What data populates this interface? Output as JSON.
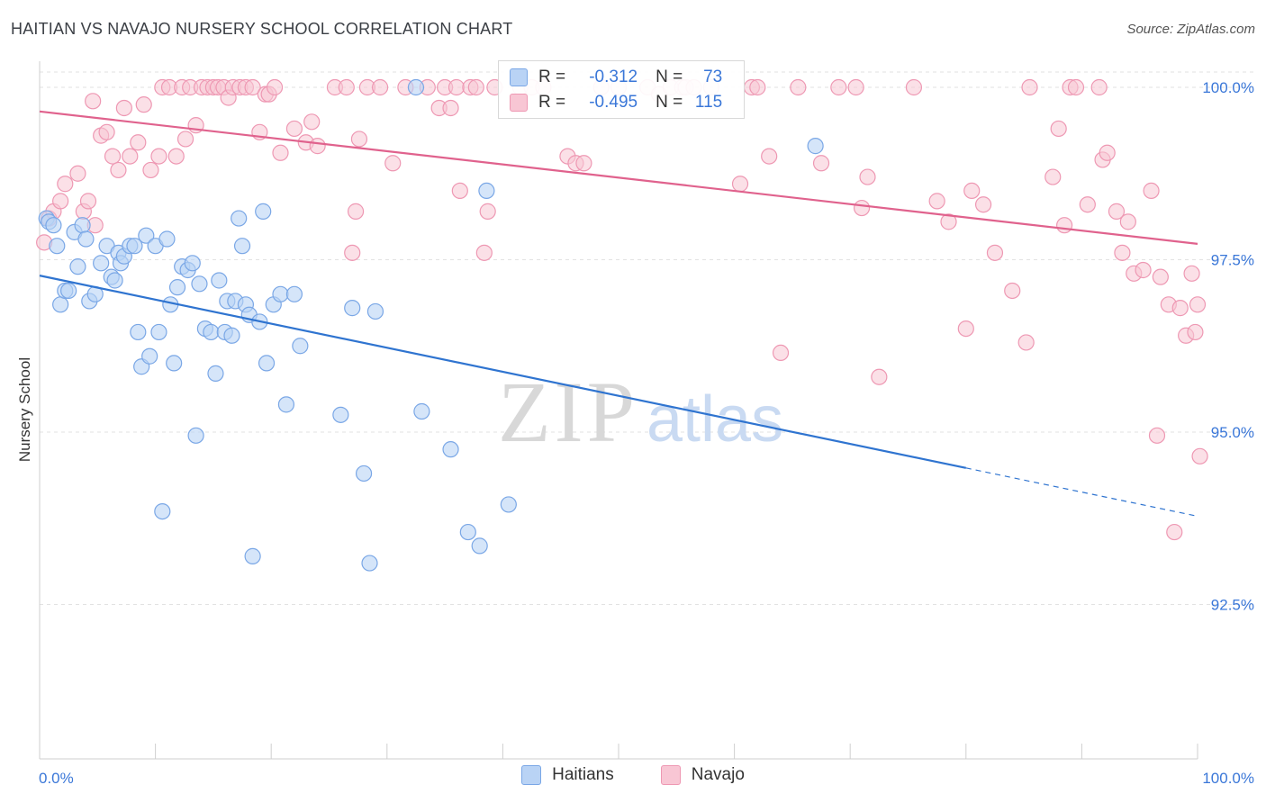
{
  "title": "HAITIAN VS NAVAJO NURSERY SCHOOL CORRELATION CHART",
  "source": "Source: ZipAtlas.com",
  "watermark": {
    "zip": "ZIP",
    "atlas": "atlas"
  },
  "legend": {
    "series1": {
      "r_label": "R =",
      "r_value": "-0.312",
      "n_label": "N =",
      "n_value": "73"
    },
    "series2": {
      "r_label": "R =",
      "r_value": "-0.495",
      "n_label": "N =",
      "n_value": "115"
    }
  },
  "bottom_legend": {
    "haitians": "Haitians",
    "navajo": "Navajo"
  },
  "colors": {
    "haitians_fill": "#b9d3f5",
    "haitians_stroke": "#7aa7e6",
    "haitians_line": "#2f74d0",
    "navajo_fill": "#f8c6d4",
    "navajo_stroke": "#ee98b3",
    "navajo_line": "#e0628d",
    "tick_label": "#3a77d8",
    "grid": "#e2e2e2"
  },
  "chart_data": {
    "type": "scatter",
    "xlabel": "",
    "ylabel": "Nursery School",
    "xlim": [
      0,
      100
    ],
    "ylim": [
      90.0,
      100.25
    ],
    "x_tick_labels": [
      {
        "x": 0,
        "label": "0.0%"
      },
      {
        "x": 100,
        "label": "100.0%"
      }
    ],
    "y_tick_labels": [
      {
        "y": 100.0,
        "label": "100.0%"
      },
      {
        "y": 97.5,
        "label": "97.5%"
      },
      {
        "y": 95.0,
        "label": "95.0%"
      },
      {
        "y": 92.5,
        "label": "92.5%"
      }
    ],
    "grid": true,
    "series": [
      {
        "name": "Haitians",
        "color": "#7aa7e6",
        "r": -0.312,
        "n": 73,
        "trend": {
          "x0": 0,
          "y0": 97.27,
          "x1": 80,
          "y1": 94.48,
          "dash_to_x": 100,
          "dash_to_y": 93.78
        },
        "points": [
          [
            0.6,
            98.1
          ],
          [
            0.8,
            98.05
          ],
          [
            1.2,
            98.0
          ],
          [
            1.5,
            97.7
          ],
          [
            1.8,
            96.85
          ],
          [
            2.2,
            97.05
          ],
          [
            2.5,
            97.05
          ],
          [
            3.0,
            97.9
          ],
          [
            3.3,
            97.4
          ],
          [
            3.7,
            98.0
          ],
          [
            4.0,
            97.8
          ],
          [
            4.3,
            96.9
          ],
          [
            4.8,
            97.0
          ],
          [
            5.3,
            97.45
          ],
          [
            5.8,
            97.7
          ],
          [
            6.2,
            97.25
          ],
          [
            6.5,
            97.2
          ],
          [
            6.8,
            97.6
          ],
          [
            7.0,
            97.45
          ],
          [
            7.3,
            97.55
          ],
          [
            7.8,
            97.7
          ],
          [
            8.2,
            97.7
          ],
          [
            8.5,
            96.45
          ],
          [
            8.8,
            95.95
          ],
          [
            9.2,
            97.85
          ],
          [
            9.5,
            96.1
          ],
          [
            10.0,
            97.7
          ],
          [
            10.3,
            96.45
          ],
          [
            10.6,
            93.85
          ],
          [
            11.0,
            97.8
          ],
          [
            11.3,
            96.85
          ],
          [
            11.6,
            96.0
          ],
          [
            11.9,
            97.1
          ],
          [
            12.3,
            97.4
          ],
          [
            12.8,
            97.35
          ],
          [
            13.2,
            97.45
          ],
          [
            13.5,
            94.95
          ],
          [
            13.8,
            97.15
          ],
          [
            14.3,
            96.5
          ],
          [
            14.8,
            96.45
          ],
          [
            15.2,
            95.85
          ],
          [
            15.5,
            97.2
          ],
          [
            16.0,
            96.45
          ],
          [
            16.2,
            96.9
          ],
          [
            16.6,
            96.4
          ],
          [
            16.9,
            96.9
          ],
          [
            17.2,
            98.1
          ],
          [
            17.5,
            97.7
          ],
          [
            17.8,
            96.85
          ],
          [
            18.1,
            96.7
          ],
          [
            18.4,
            93.2
          ],
          [
            19.0,
            96.6
          ],
          [
            19.3,
            98.2
          ],
          [
            19.6,
            96.0
          ],
          [
            20.2,
            96.85
          ],
          [
            20.8,
            97.0
          ],
          [
            21.3,
            95.4
          ],
          [
            22.0,
            97.0
          ],
          [
            22.5,
            96.25
          ],
          [
            26.0,
            95.25
          ],
          [
            27.0,
            96.8
          ],
          [
            28.0,
            94.4
          ],
          [
            28.5,
            93.1
          ],
          [
            29.0,
            96.75
          ],
          [
            32.5,
            100.0
          ],
          [
            33.0,
            95.3
          ],
          [
            35.5,
            94.75
          ],
          [
            37.0,
            93.55
          ],
          [
            38.0,
            93.35
          ],
          [
            38.6,
            98.5
          ],
          [
            40.5,
            93.95
          ],
          [
            67.0,
            99.15
          ]
        ]
      },
      {
        "name": "Navajo",
        "color": "#ee98b3",
        "r": -0.495,
        "n": 115,
        "trend": {
          "x0": 0,
          "y0": 99.65,
          "x1": 100,
          "y1": 97.73
        },
        "points": [
          [
            0.4,
            97.75
          ],
          [
            0.8,
            98.1
          ],
          [
            1.2,
            98.2
          ],
          [
            1.8,
            98.35
          ],
          [
            2.2,
            98.6
          ],
          [
            3.3,
            98.75
          ],
          [
            3.8,
            98.2
          ],
          [
            4.2,
            98.35
          ],
          [
            4.8,
            98.0
          ],
          [
            4.6,
            99.8
          ],
          [
            5.3,
            99.3
          ],
          [
            5.8,
            99.35
          ],
          [
            6.3,
            99.0
          ],
          [
            6.8,
            98.8
          ],
          [
            7.3,
            99.7
          ],
          [
            7.8,
            99.0
          ],
          [
            8.5,
            99.2
          ],
          [
            9.0,
            99.75
          ],
          [
            9.6,
            98.8
          ],
          [
            10.3,
            99.0
          ],
          [
            10.6,
            100.0
          ],
          [
            11.2,
            100.0
          ],
          [
            11.8,
            99.0
          ],
          [
            12.3,
            100.0
          ],
          [
            12.6,
            99.25
          ],
          [
            13.0,
            100.0
          ],
          [
            13.5,
            99.45
          ],
          [
            14.0,
            100.0
          ],
          [
            14.5,
            100.0
          ],
          [
            15.0,
            100.0
          ],
          [
            15.4,
            100.0
          ],
          [
            15.9,
            100.0
          ],
          [
            16.3,
            99.85
          ],
          [
            16.7,
            100.0
          ],
          [
            17.3,
            100.0
          ],
          [
            17.8,
            100.0
          ],
          [
            18.4,
            100.0
          ],
          [
            19.0,
            99.35
          ],
          [
            19.5,
            99.9
          ],
          [
            19.8,
            99.9
          ],
          [
            20.3,
            100.0
          ],
          [
            20.8,
            99.05
          ],
          [
            22.0,
            99.4
          ],
          [
            23.0,
            99.2
          ],
          [
            23.5,
            99.5
          ],
          [
            24.0,
            99.15
          ],
          [
            25.5,
            100.0
          ],
          [
            26.5,
            100.0
          ],
          [
            27.0,
            97.6
          ],
          [
            27.3,
            98.2
          ],
          [
            27.6,
            99.25
          ],
          [
            28.3,
            100.0
          ],
          [
            29.4,
            100.0
          ],
          [
            30.5,
            98.9
          ],
          [
            31.6,
            100.0
          ],
          [
            33.5,
            100.0
          ],
          [
            34.5,
            99.7
          ],
          [
            35.0,
            100.0
          ],
          [
            35.5,
            99.7
          ],
          [
            36.0,
            100.0
          ],
          [
            36.3,
            98.5
          ],
          [
            37.2,
            100.0
          ],
          [
            37.7,
            100.0
          ],
          [
            38.4,
            97.6
          ],
          [
            38.7,
            98.2
          ],
          [
            39.3,
            100.0
          ],
          [
            41.5,
            100.0
          ],
          [
            42.5,
            100.0
          ],
          [
            43.5,
            100.0
          ],
          [
            45.6,
            99.0
          ],
          [
            46.3,
            98.9
          ],
          [
            47.0,
            98.9
          ],
          [
            48.5,
            100.0
          ],
          [
            50.0,
            100.0
          ],
          [
            52.5,
            100.0
          ],
          [
            53.5,
            99.9
          ],
          [
            54.5,
            100.0
          ],
          [
            55.5,
            100.0
          ],
          [
            55.8,
            100.0
          ],
          [
            56.5,
            100.0
          ],
          [
            58.0,
            100.0
          ],
          [
            60.5,
            98.6
          ],
          [
            61.5,
            100.0
          ],
          [
            62.0,
            100.0
          ],
          [
            63.0,
            99.0
          ],
          [
            64.0,
            96.15
          ],
          [
            65.5,
            100.0
          ],
          [
            67.5,
            98.9
          ],
          [
            69.0,
            100.0
          ],
          [
            70.5,
            100.0
          ],
          [
            71.0,
            98.25
          ],
          [
            71.5,
            98.7
          ],
          [
            72.5,
            95.8
          ],
          [
            75.5,
            100.0
          ],
          [
            77.5,
            98.35
          ],
          [
            78.5,
            98.05
          ],
          [
            80.0,
            96.5
          ],
          [
            80.5,
            98.5
          ],
          [
            81.5,
            98.3
          ],
          [
            82.5,
            97.6
          ],
          [
            84.0,
            97.05
          ],
          [
            85.2,
            96.3
          ],
          [
            85.5,
            100.0
          ],
          [
            87.5,
            98.7
          ],
          [
            88.0,
            99.4
          ],
          [
            88.5,
            98.0
          ],
          [
            89.0,
            100.0
          ],
          [
            89.5,
            100.0
          ],
          [
            90.5,
            98.3
          ],
          [
            91.5,
            100.0
          ],
          [
            91.8,
            98.95
          ],
          [
            92.2,
            99.05
          ],
          [
            93.0,
            98.2
          ],
          [
            93.5,
            97.6
          ],
          [
            94.0,
            98.05
          ],
          [
            94.5,
            97.3
          ],
          [
            95.3,
            97.35
          ],
          [
            96.0,
            98.5
          ],
          [
            96.8,
            97.25
          ],
          [
            96.5,
            94.95
          ],
          [
            97.5,
            96.85
          ],
          [
            98.5,
            96.8
          ],
          [
            98.0,
            93.55
          ],
          [
            99.0,
            96.4
          ],
          [
            99.5,
            97.3
          ],
          [
            100.0,
            96.85
          ],
          [
            99.8,
            96.45
          ],
          [
            100.2,
            94.65
          ]
        ]
      }
    ]
  }
}
